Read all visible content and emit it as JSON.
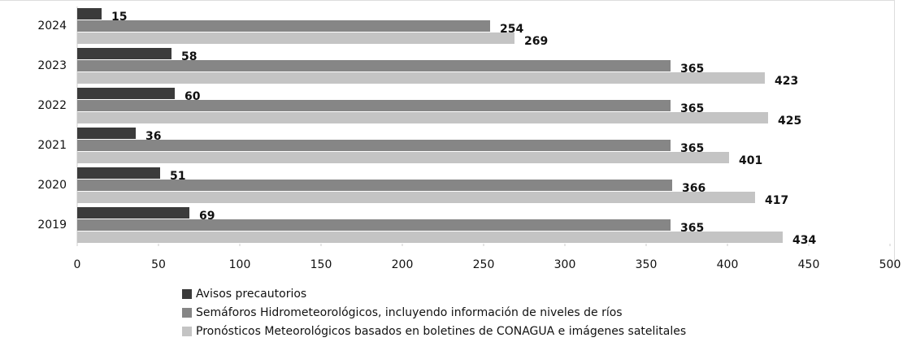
{
  "chart_data": {
    "type": "barh",
    "categories": [
      "2024",
      "2023",
      "2022",
      "2021",
      "2020",
      "2019"
    ],
    "series": [
      {
        "name": "Avisos precautorios",
        "color": "#3b3b3b",
        "values": [
          15,
          58,
          60,
          36,
          51,
          69
        ]
      },
      {
        "name": "Semáforos Hidrometeorológicos, incluyendo información de niveles de ríos",
        "color": "#868686",
        "values": [
          254,
          365,
          365,
          365,
          366,
          365
        ]
      },
      {
        "name": "Pronósticos Meteorológicos basados en boletines de CONAGUA e imágenes satelitales",
        "color": "#c4c4c4",
        "values": [
          269,
          423,
          425,
          401,
          417,
          434
        ]
      }
    ],
    "xlim": [
      0,
      500
    ],
    "xticks": [
      0,
      50,
      100,
      150,
      200,
      250,
      300,
      350,
      400,
      450,
      500
    ],
    "legend": "bottom"
  }
}
